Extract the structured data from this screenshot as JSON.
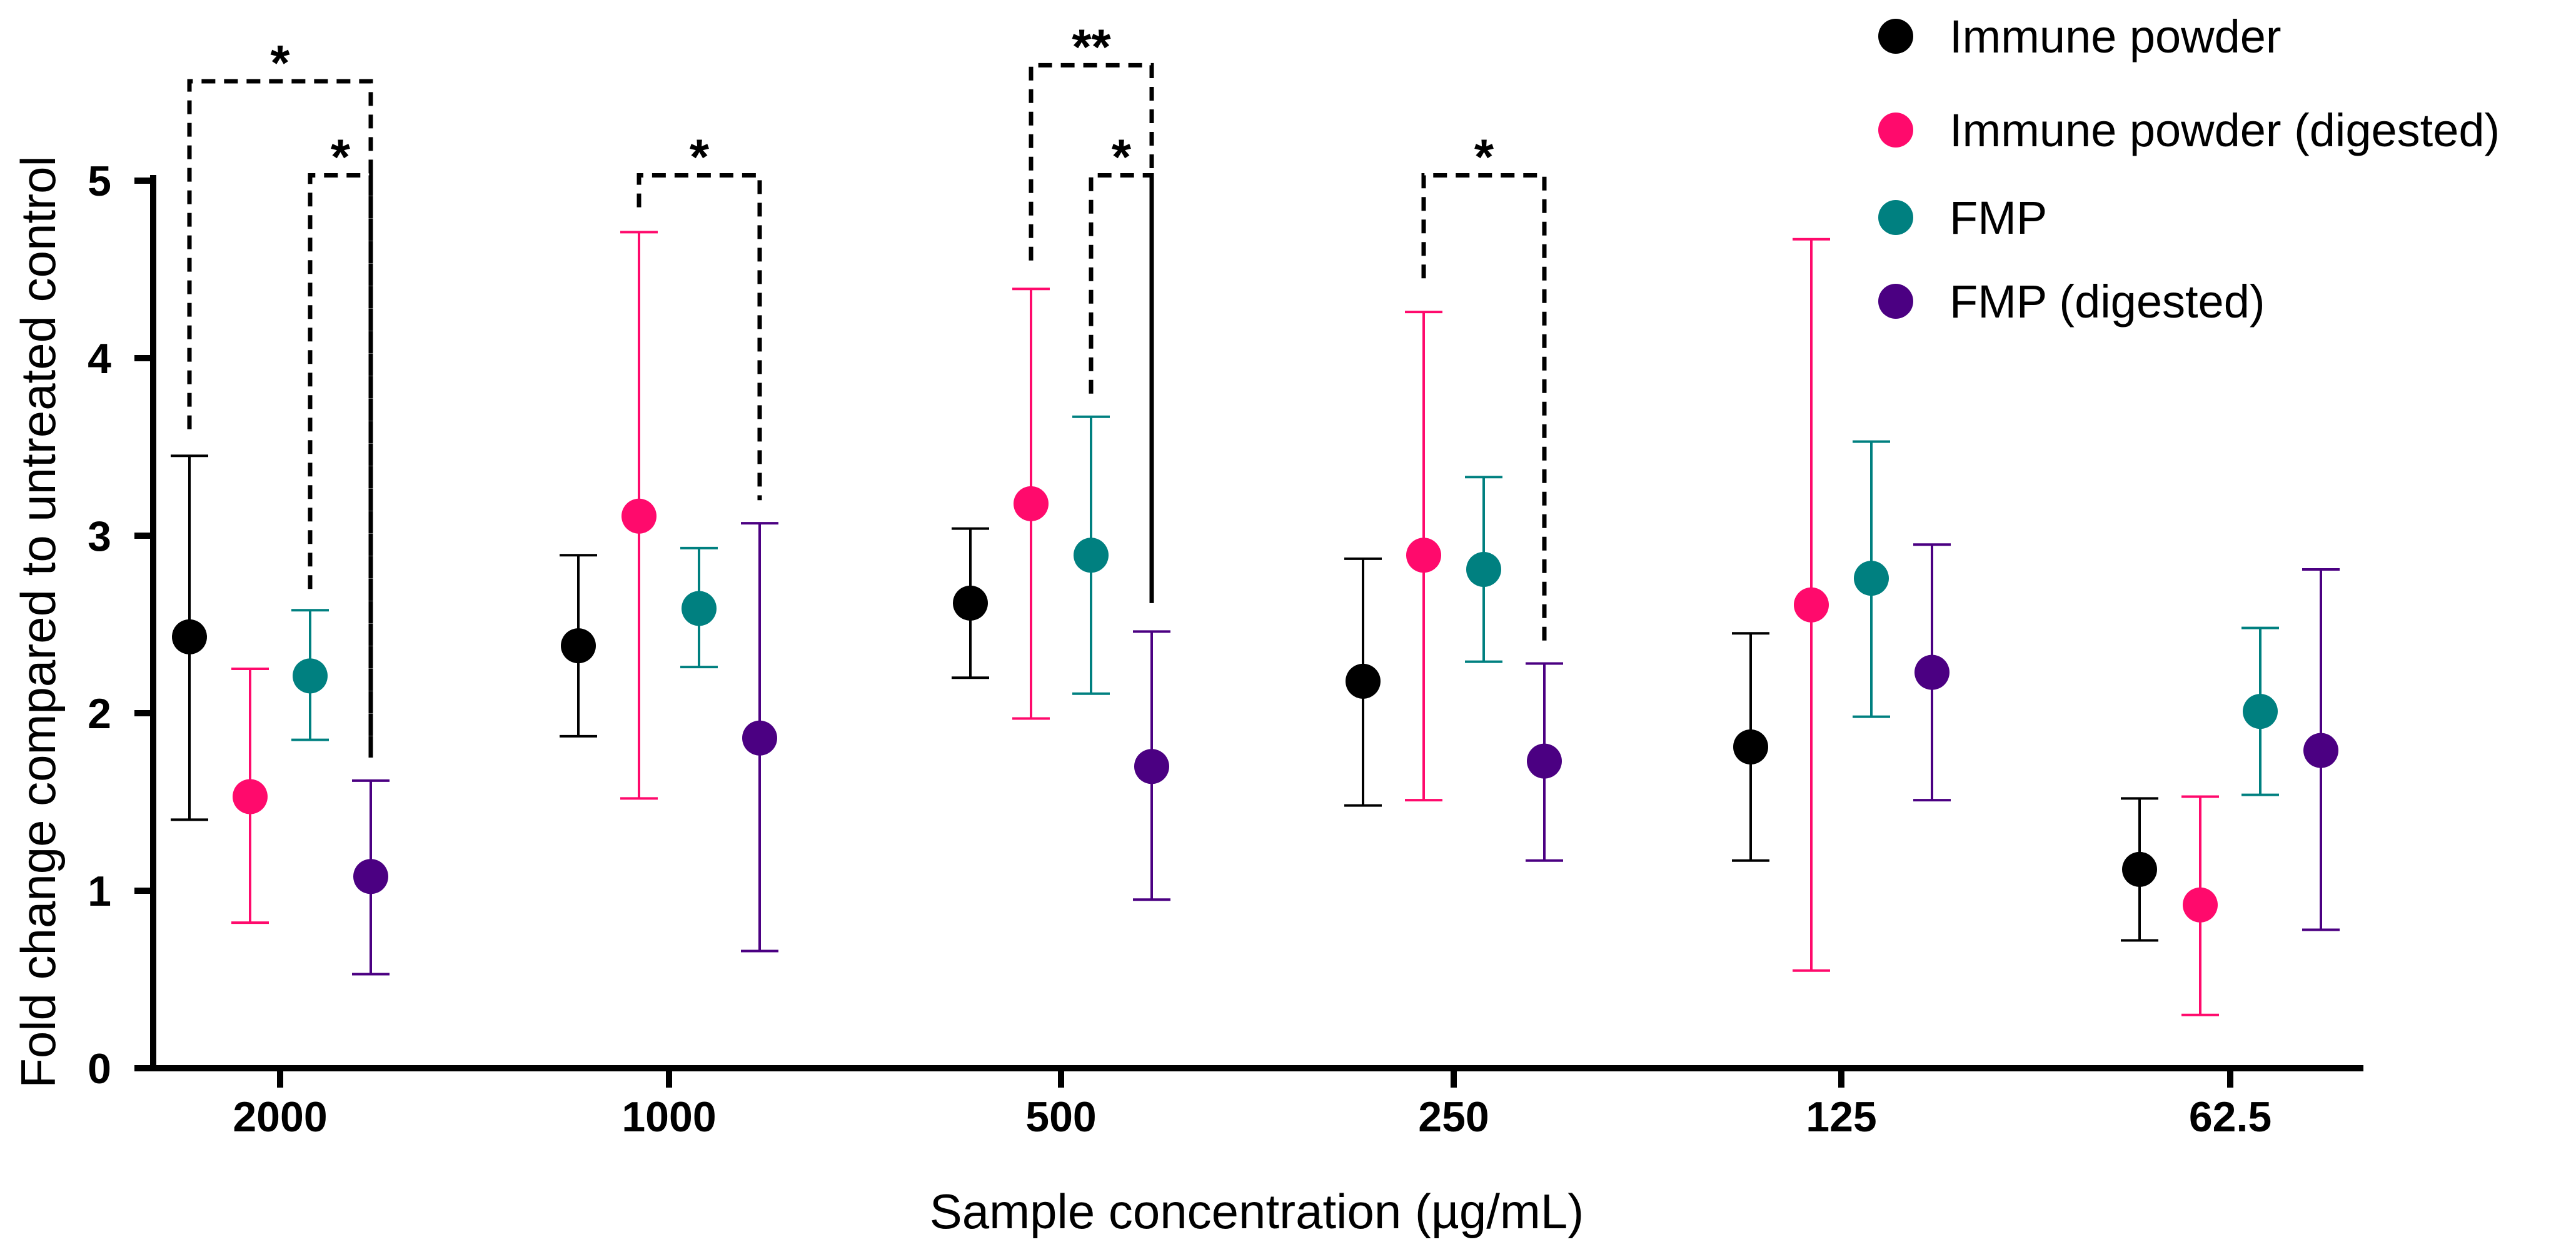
{
  "chart_data": {
    "type": "scatter",
    "title": "",
    "xlabel": "Sample concentration (µg/mL)",
    "ylabel": "Fold change compared to untreated control",
    "ylim": [
      0,
      5
    ],
    "yticks": [
      "0",
      "1",
      "2",
      "3",
      "4",
      "5"
    ],
    "categories": [
      "2000",
      "1000",
      "500",
      "250",
      "125",
      "62.5"
    ],
    "legend_position": "top-right",
    "series": [
      {
        "name": "Immune powder",
        "color": "#000000",
        "values": [
          2.43,
          2.38,
          2.62,
          2.18,
          1.81,
          1.12
        ],
        "error_low": [
          1.4,
          1.87,
          2.2,
          1.48,
          1.17,
          0.72
        ],
        "error_high": [
          3.45,
          2.89,
          3.04,
          2.87,
          2.45,
          1.52
        ]
      },
      {
        "name": "Immune powder (digested)",
        "color": "#FF0A6C",
        "values": [
          1.53,
          3.11,
          3.18,
          2.89,
          2.61,
          0.92
        ],
        "error_low": [
          0.82,
          1.52,
          1.97,
          1.51,
          0.55,
          0.3
        ],
        "error_high": [
          2.25,
          4.71,
          4.39,
          4.26,
          4.67,
          1.53
        ]
      },
      {
        "name": "FMP",
        "color": "#008080",
        "values": [
          2.21,
          2.59,
          2.89,
          2.81,
          2.76,
          2.01
        ],
        "error_low": [
          1.85,
          2.26,
          2.11,
          2.29,
          1.98,
          1.54
        ],
        "error_high": [
          2.58,
          2.93,
          3.67,
          3.33,
          3.53,
          2.48
        ]
      },
      {
        "name": "FMP (digested)",
        "color": "#4B0082",
        "values": [
          1.08,
          1.86,
          1.7,
          1.73,
          2.23,
          1.79
        ],
        "error_low": [
          0.53,
          0.66,
          0.95,
          1.17,
          1.51,
          0.78
        ],
        "error_high": [
          1.62,
          3.07,
          2.46,
          2.28,
          2.95,
          2.81
        ]
      }
    ],
    "significance": [
      {
        "group": 0,
        "from": 0,
        "to": 3,
        "label": "*",
        "from_y": 3.6,
        "to_y": 1.75,
        "top_y": 5.56
      },
      {
        "group": 0,
        "from": 2,
        "to": 3,
        "label": "*",
        "from_y": 2.7,
        "to_y": 1.75,
        "top_y": 5.03
      },
      {
        "group": 1,
        "from": 1,
        "to": 3,
        "label": "*",
        "from_y": 4.85,
        "to_y": 3.2,
        "top_y": 5.03
      },
      {
        "group": 2,
        "from": 1,
        "to": 3,
        "label": "**",
        "from_y": 4.55,
        "to_y": 2.62,
        "top_y": 5.65
      },
      {
        "group": 2,
        "from": 2,
        "to": 3,
        "label": "*",
        "from_y": 3.8,
        "to_y": 2.62,
        "top_y": 5.03
      },
      {
        "group": 3,
        "from": 1,
        "to": 3,
        "label": "*",
        "from_y": 4.45,
        "to_y": 2.4,
        "top_y": 5.03
      }
    ]
  }
}
